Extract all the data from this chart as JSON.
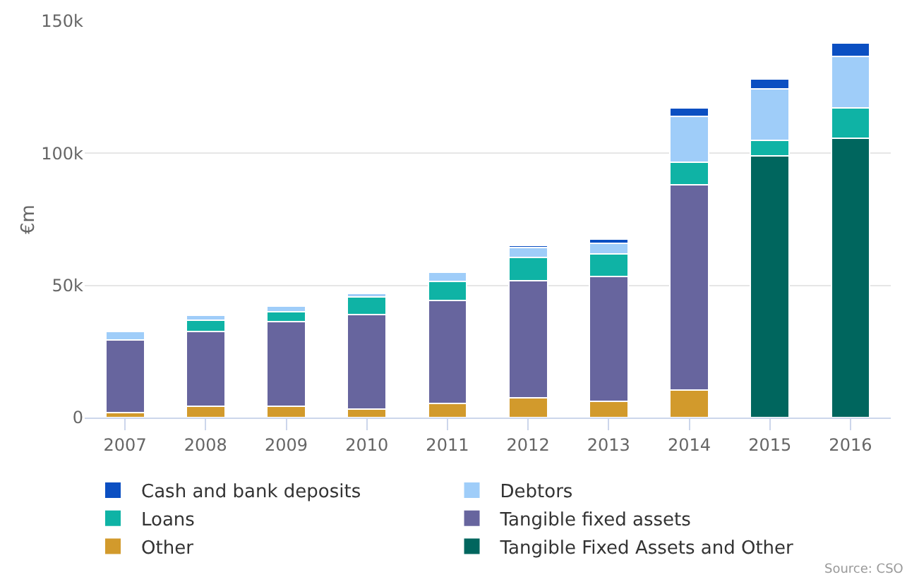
{
  "chart_data": {
    "type": "bar",
    "stacked": true,
    "ylabel": "€m",
    "categories": [
      "2007",
      "2008",
      "2009",
      "2010",
      "2011",
      "2012",
      "2013",
      "2014",
      "2015",
      "2016"
    ],
    "series": [
      {
        "name": "Tangible Fixed Assets and Other",
        "color": "#00665e",
        "values": [
          null,
          null,
          null,
          null,
          null,
          null,
          null,
          null,
          98900,
          105600
        ]
      },
      {
        "name": "Other",
        "color": "#d29a2c",
        "values": [
          1800,
          4200,
          4200,
          3300,
          5400,
          7600,
          6200,
          10500,
          null,
          null
        ]
      },
      {
        "name": "Tangible fixed assets",
        "color": "#67659e",
        "values": [
          27500,
          28400,
          32000,
          35700,
          39000,
          44200,
          47100,
          77500,
          null,
          null
        ]
      },
      {
        "name": "Loans",
        "color": "#0fb3a5",
        "values": [
          null,
          4200,
          3800,
          6700,
          7200,
          8700,
          8700,
          8700,
          6000,
          11600
        ]
      },
      {
        "name": "Debtors",
        "color": "#9fcdf9",
        "values": [
          3300,
          2000,
          2200,
          1400,
          3300,
          3800,
          3800,
          17400,
          19600,
          19400
        ]
      },
      {
        "name": "Cash and bank deposits",
        "color": "#0b4fc2",
        "values": [
          null,
          null,
          null,
          null,
          null,
          900,
          1600,
          3100,
          3600,
          5100
        ]
      }
    ],
    "ylim": [
      0,
      150000
    ],
    "yticks": [
      0,
      {
        "value": 50000,
        "label": "50k"
      },
      {
        "value": 100000,
        "label": "100k"
      },
      {
        "value": 150000,
        "label": "150k"
      }
    ],
    "grid": "y",
    "legend": "bottom",
    "annotations": [
      "Source: CSO"
    ]
  }
}
